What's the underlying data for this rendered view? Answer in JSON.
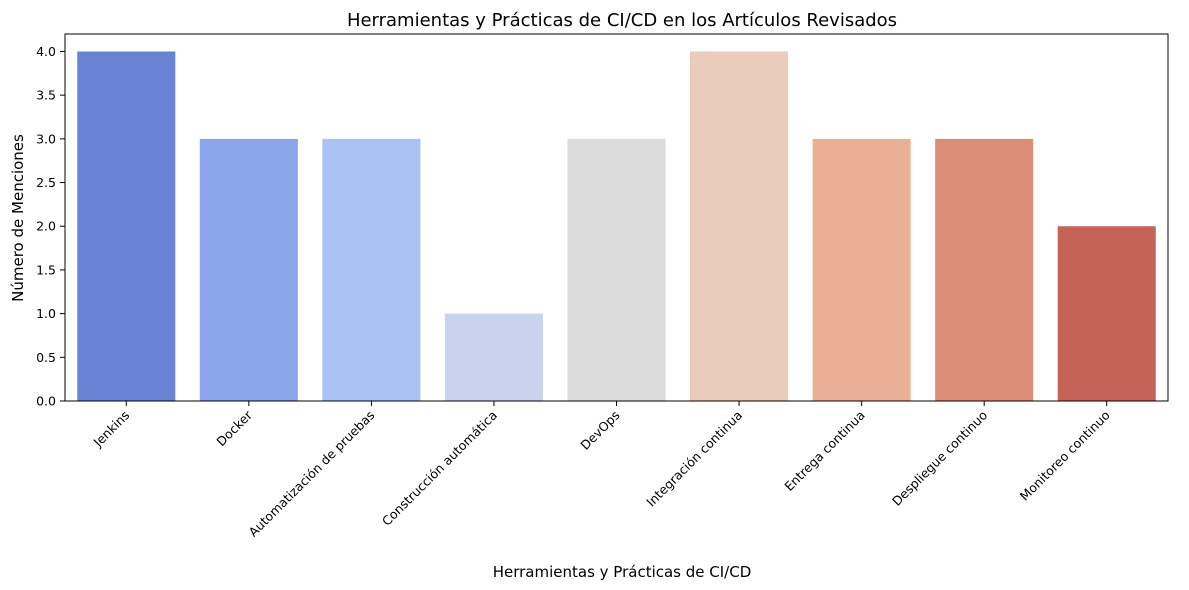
{
  "chart_data": {
    "type": "bar",
    "title": "Herramientas y Prácticas de CI/CD en los Artículos Revisados",
    "xlabel": "Herramientas y Prácticas de CI/CD",
    "ylabel": "Número de Menciones",
    "categories": [
      "Jenkins",
      "Docker",
      "Automatización de pruebas",
      "Construcción automática",
      "DevOps",
      "Integración continua",
      "Entrega continua",
      "Despliegue continuo",
      "Monitoreo continuo"
    ],
    "values": [
      4,
      3,
      3,
      1,
      3,
      4,
      3,
      3,
      2
    ],
    "colors": [
      "#6a82d4",
      "#8aa5e9",
      "#aac1f4",
      "#c8d4ee",
      "#dcdcdc",
      "#eacbbc",
      "#eab096",
      "#db8d76",
      "#c46358"
    ],
    "ylim": [
      0,
      4.2
    ],
    "yticks": [
      "0.0",
      "0.5",
      "1.0",
      "1.5",
      "2.0",
      "2.5",
      "3.0",
      "3.5",
      "4.0"
    ],
    "grid": false,
    "legend": "none"
  }
}
